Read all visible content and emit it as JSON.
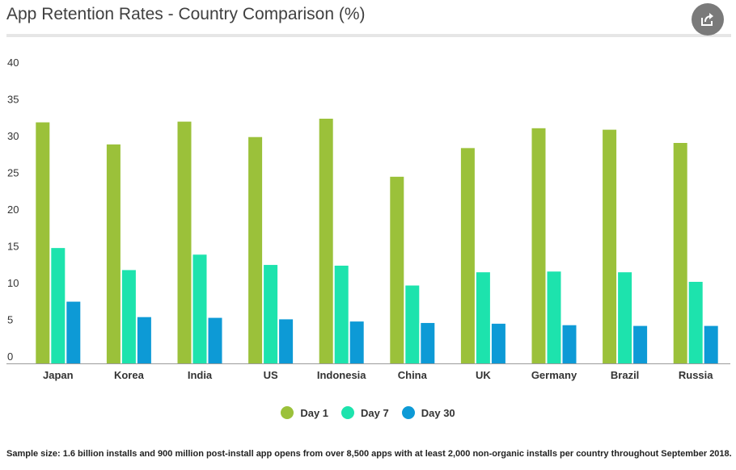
{
  "header": {
    "title": "App Retention Rates - Country Comparison (%)",
    "share_icon": "share-icon"
  },
  "footnote": "Sample size: 1.6 billion installs and 900 million post-install app opens from over 8,500 apps with at least 2,000 non-organic installs per country throughout September 2018.",
  "chart_data": {
    "type": "bar",
    "title": "App Retention Rates - Country Comparison (%)",
    "xlabel": "",
    "ylabel": "",
    "ylim": [
      0,
      40
    ],
    "yticks": [
      0,
      5,
      10,
      15,
      20,
      25,
      30,
      35,
      40
    ],
    "grid": false,
    "legend": "bottom-center",
    "categories": [
      "Japan",
      "Korea",
      "India",
      "US",
      "Indonesia",
      "China",
      "UK",
      "Germany",
      "Brazil",
      "Russia"
    ],
    "series": [
      {
        "name": "Day 1",
        "color": "#9bc13a",
        "values": [
          32.8,
          29.8,
          32.9,
          30.8,
          33.3,
          25.4,
          29.3,
          32.0,
          31.8,
          30.0
        ]
      },
      {
        "name": "Day 7",
        "color": "#1de3ad",
        "values": [
          15.7,
          12.7,
          14.8,
          13.4,
          13.3,
          10.6,
          12.4,
          12.5,
          12.4,
          11.1
        ]
      },
      {
        "name": "Day 30",
        "color": "#0d9ad6",
        "values": [
          8.4,
          6.3,
          6.2,
          6.0,
          5.7,
          5.5,
          5.4,
          5.2,
          5.1,
          5.1
        ]
      }
    ]
  }
}
